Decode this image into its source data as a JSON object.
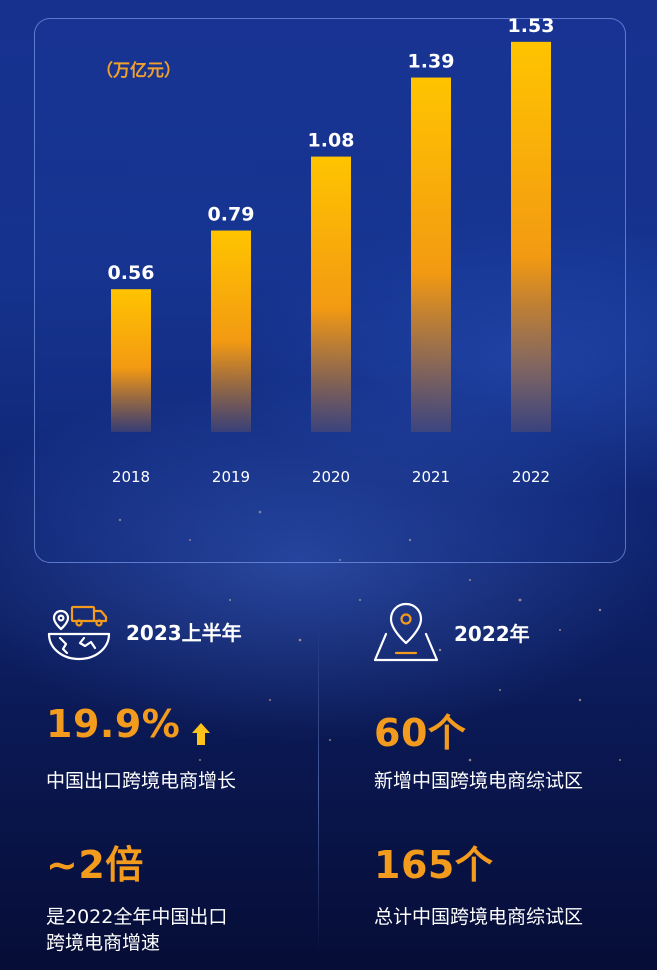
{
  "chart_data": {
    "type": "bar",
    "unit_label": "（万亿元）",
    "categories": [
      "2018",
      "2019",
      "2020",
      "2021",
      "2022"
    ],
    "values": [
      0.56,
      0.79,
      1.08,
      1.39,
      1.53
    ],
    "value_labels": [
      "0.56",
      "0.79",
      "1.08",
      "1.39",
      "1.53"
    ],
    "ylim": [
      0,
      1.6
    ],
    "grid": false,
    "colors": {
      "bar_top": "#ffc400",
      "bar_bottom": "#f08a1a",
      "label": "#ffffff",
      "axis_text": "#ffffff"
    }
  },
  "stats": {
    "left": {
      "heading": "2023上半年",
      "icon": "delivery-truck-globe-icon",
      "items": [
        {
          "value": "19.9%",
          "has_up_arrow": true,
          "desc": "中国出口跨境电商增长"
        },
        {
          "value": "~2倍",
          "desc_lines": [
            "是2022全年中国出口",
            "跨境电商增速"
          ]
        }
      ]
    },
    "right": {
      "heading": "2022年",
      "icon": "map-pin-icon",
      "items": [
        {
          "value": "60个",
          "desc": "新增中国跨境电商综试区"
        },
        {
          "value": "165个",
          "desc": "总计中国跨境电商综试区"
        }
      ]
    },
    "accent_color": "#f39b1d"
  }
}
